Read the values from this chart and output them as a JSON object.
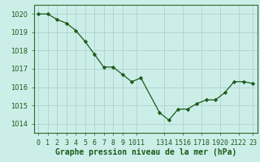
{
  "x": [
    0,
    1,
    2,
    3,
    4,
    5,
    6,
    7,
    8,
    9,
    10,
    11,
    13,
    14,
    15,
    16,
    17,
    18,
    19,
    20,
    21,
    22,
    23
  ],
  "y": [
    1020.0,
    1020.0,
    1019.7,
    1019.5,
    1019.1,
    1018.5,
    1017.8,
    1017.1,
    1017.1,
    1016.7,
    1016.3,
    1016.5,
    1014.6,
    1014.2,
    1014.8,
    1014.8,
    1015.1,
    1015.3,
    1015.3,
    1015.7,
    1016.3,
    1016.3,
    1016.2
  ],
  "line_color": "#1a5c1a",
  "marker": "D",
  "marker_size": 2.2,
  "bg_color": "#cceee8",
  "grid_color": "#aacccc",
  "xlabel": "Graphe pression niveau de la mer (hPa)",
  "xlabel_color": "#1a5c1a",
  "xlabel_fontsize": 7,
  "tick_color": "#1a5c1a",
  "tick_fontsize": 6,
  "ylim": [
    1013.5,
    1020.5
  ],
  "xlim": [
    -0.5,
    23.5
  ],
  "yticks": [
    1014,
    1015,
    1016,
    1017,
    1018,
    1019,
    1020
  ],
  "xtick_labels": [
    "0",
    "1",
    "2",
    "3",
    "4",
    "5",
    "6",
    "7",
    "8",
    "9",
    "1011",
    "",
    "13",
    "1415",
    "1617",
    "1819",
    "2021",
    "22",
    "23",
    "",
    "",
    "",
    ""
  ]
}
